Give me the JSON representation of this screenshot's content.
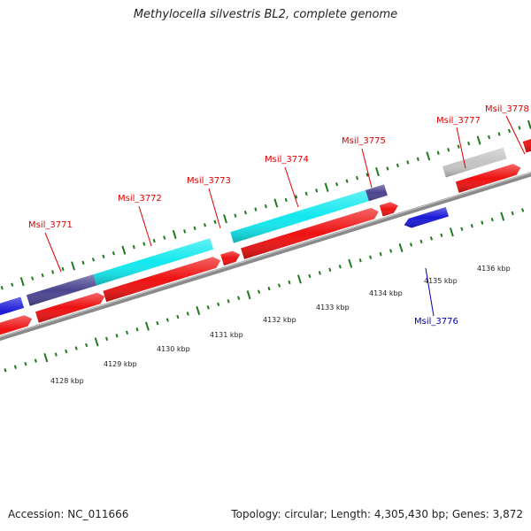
{
  "title": "Methylocella silvestris BL2, complete genome",
  "footer": {
    "accession": "Accession: NC_011666",
    "summary": "Topology: circular; Length: 4,305,430 bp; Genes: 3,872"
  },
  "colors": {
    "forward_cds": "#ee1111",
    "reverse_cds": "#1a1ad8",
    "cyan_feature": "#11e8ee",
    "purple_feature": "#4a4490",
    "gray_feature": "#c4c4c4",
    "backbone": "#8a8a8a",
    "ticks": "#1f7a1f",
    "forward_label": "#dd0000",
    "reverse_label": "#0000bb"
  },
  "kbp_labels": [
    "4128 kbp",
    "4129 kbp",
    "4130 kbp",
    "4131 kbp",
    "4132 kbp",
    "4133 kbp",
    "4134 kbp",
    "4135 kbp",
    "4136 kbp"
  ],
  "gene_labels": [
    {
      "text": "Msil_3771",
      "strand": "forward"
    },
    {
      "text": "Msil_3772",
      "strand": "forward"
    },
    {
      "text": "Msil_3773",
      "strand": "forward"
    },
    {
      "text": "Msil_3774",
      "strand": "forward"
    },
    {
      "text": "Msil_3775",
      "strand": "forward"
    },
    {
      "text": "Msil_3776",
      "strand": "reverse"
    },
    {
      "text": "Msil_3777",
      "strand": "forward"
    },
    {
      "text": "Msil_3778",
      "strand": "forward"
    }
  ]
}
